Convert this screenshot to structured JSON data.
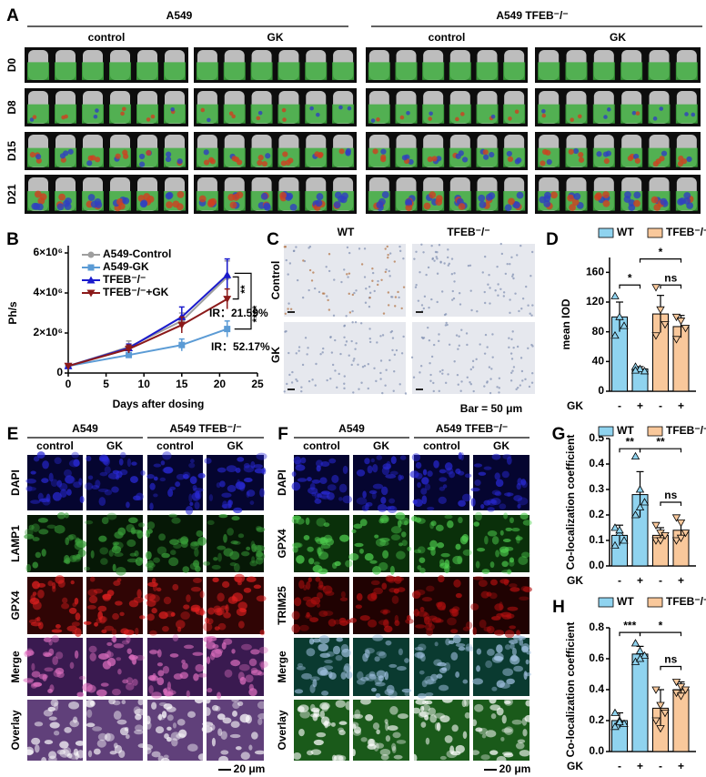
{
  "figure": {
    "panel_a": {
      "letter": "A",
      "groups": [
        "A549",
        "A549 TFEB⁻/⁻"
      ],
      "conditions": [
        "control",
        "GK",
        "control",
        "GK"
      ],
      "days": [
        "D0",
        "D8",
        "D15",
        "D21"
      ]
    },
    "panel_c": {
      "letter": "C",
      "columns": [
        "WT",
        "TFEB⁻/⁻"
      ],
      "rows": [
        "Control",
        "GK"
      ],
      "scale": "Bar = 50 μm"
    },
    "panel_e": {
      "letter": "E",
      "groups": [
        "A549",
        "A549 TFEB⁻/⁻"
      ],
      "conditions": [
        "control",
        "GK",
        "control",
        "GK"
      ],
      "rows": [
        "DAPI",
        "LAMP1",
        "GPX4",
        "Merge",
        "Overlay"
      ],
      "row_colors": [
        "#1a1acc",
        "#1a9a3a",
        "#cc1a1a",
        "#000000",
        "#000000"
      ],
      "scale": "20 μm"
    },
    "panel_f": {
      "letter": "F",
      "groups": [
        "A549",
        "A549 TFEB⁻/⁻"
      ],
      "conditions": [
        "control",
        "GK",
        "control",
        "GK"
      ],
      "rows": [
        "DAPI",
        "GPX4",
        "TRIM25",
        "Merge",
        "Overlay"
      ],
      "row_colors": [
        "#1a1acc",
        "#1a9a3a",
        "#cc1a1a",
        "#000000",
        "#000000"
      ],
      "scale": "20 μm"
    }
  },
  "chart_data": [
    {
      "type": "line",
      "panel": "B",
      "xlabel": "Days after dosing",
      "ylabel": "Ph/s",
      "x": [
        0,
        8,
        15,
        21
      ],
      "xlim": [
        0,
        25
      ],
      "xticks": [
        0,
        5,
        10,
        15,
        20,
        25
      ],
      "ylim": [
        0,
        6000000
      ],
      "yticks": [
        0,
        {
          "value": 2000000,
          "label": "2×10⁶"
        },
        {
          "value": 4000000,
          "label": "4×10⁶"
        },
        {
          "value": 6000000,
          "label": "6×10⁶"
        }
      ],
      "series": [
        {
          "name": "A549-Control",
          "color": "#9e9e9e",
          "marker": "circle",
          "values": [
            350000,
            1300000,
            2600000,
            4800000
          ],
          "errors": [
            50000,
            300000,
            400000,
            800000
          ]
        },
        {
          "name": "A549-GK",
          "color": "#5b9bd5",
          "marker": "square",
          "values": [
            350000,
            900000,
            1400000,
            2200000
          ],
          "errors": [
            50000,
            100000,
            300000,
            400000
          ]
        },
        {
          "name": "TFEB⁻/⁻",
          "color": "#1a1acc",
          "marker": "triangle",
          "values": [
            350000,
            1250000,
            2800000,
            4900000
          ],
          "errors": [
            50000,
            200000,
            500000,
            800000
          ]
        },
        {
          "name": "TFEB⁻/⁻+GK",
          "color": "#8b1a1a",
          "marker": "triangle-down",
          "values": [
            350000,
            1200000,
            2400000,
            3700000
          ],
          "errors": [
            50000,
            200000,
            400000,
            500000
          ]
        }
      ],
      "annotations": [
        {
          "text": "IR：21.59%",
          "color": "#8b1a1a"
        },
        {
          "text": "IR：52.17%",
          "color": "#5b9bd5"
        },
        {
          "text": "**",
          "color": "#000000"
        },
        {
          "text": "****",
          "color": "#000000"
        }
      ]
    },
    {
      "type": "bar",
      "panel": "D",
      "ylabel": "mean IOD",
      "xlabel": "GK",
      "categories": [
        "-",
        "+"
      ],
      "ylim": [
        0,
        180
      ],
      "yticks": [
        0,
        40,
        80,
        120,
        160
      ],
      "series": [
        {
          "name": "WT",
          "color": "#8fd3ef",
          "values": [
            100,
            30
          ],
          "errors": [
            20,
            3
          ],
          "points": [
            [
              128,
              100,
              88,
              75
            ],
            [
              33,
              30,
              27,
              28
            ]
          ]
        },
        {
          "name": "TFEB⁻/⁻",
          "color": "#f9c89b",
          "values": [
            104,
            87
          ],
          "errors": [
            25,
            15
          ],
          "points": [
            [
              140,
              110,
              90,
              75
            ],
            [
              100,
              95,
              85,
              70
            ]
          ]
        }
      ],
      "significance": [
        "*",
        "*",
        "ns"
      ]
    },
    {
      "type": "bar",
      "panel": "G",
      "ylabel": "Co-localization coefficient",
      "xlabel": "GK",
      "categories": [
        "-",
        "+"
      ],
      "ylim": [
        0,
        0.5
      ],
      "yticks": [
        {
          "value": 0,
          "label": "0.0"
        },
        0.1,
        0.2,
        0.3,
        0.4,
        0.5
      ],
      "series": [
        {
          "name": "WT",
          "color": "#8fd3ef",
          "values": [
            0.12,
            0.28
          ],
          "errors": [
            0.04,
            0.09
          ],
          "points": [
            [
              0.15,
              0.13,
              0.1,
              0.08,
              0.14
            ],
            [
              0.43,
              0.3,
              0.25,
              0.2,
              0.23
            ]
          ]
        },
        {
          "name": "TFEB⁻/⁻",
          "color": "#f9c89b",
          "values": [
            0.12,
            0.14
          ],
          "errors": [
            0.03,
            0.04
          ],
          "points": [
            [
              0.16,
              0.13,
              0.12,
              0.1,
              0.1
            ],
            [
              0.19,
              0.17,
              0.13,
              0.1,
              0.11
            ]
          ]
        }
      ],
      "significance": [
        "**",
        "**",
        "ns"
      ]
    },
    {
      "type": "bar",
      "panel": "H",
      "ylabel": "Co-localization coefficient",
      "xlabel": "GK",
      "categories": [
        "-",
        "+"
      ],
      "ylim": [
        0,
        0.8
      ],
      "yticks": [
        {
          "value": 0,
          "label": "0.0"
        },
        0.2,
        0.4,
        0.6,
        0.8
      ],
      "series": [
        {
          "name": "WT",
          "color": "#8fd3ef",
          "values": [
            0.2,
            0.63
          ],
          "errors": [
            0.05,
            0.05
          ],
          "points": [
            [
              0.25,
              0.2,
              0.18,
              0.16,
              0.19
            ],
            [
              0.7,
              0.65,
              0.62,
              0.58,
              0.6
            ]
          ]
        },
        {
          "name": "TFEB⁻/⁻",
          "color": "#f9c89b",
          "values": [
            0.28,
            0.4
          ],
          "errors": [
            0.12,
            0.05
          ],
          "points": [
            [
              0.4,
              0.3,
              0.25,
              0.2,
              0.15
            ],
            [
              0.45,
              0.42,
              0.4,
              0.38,
              0.36
            ]
          ]
        }
      ],
      "significance": [
        "***",
        "*",
        "ns"
      ]
    }
  ]
}
